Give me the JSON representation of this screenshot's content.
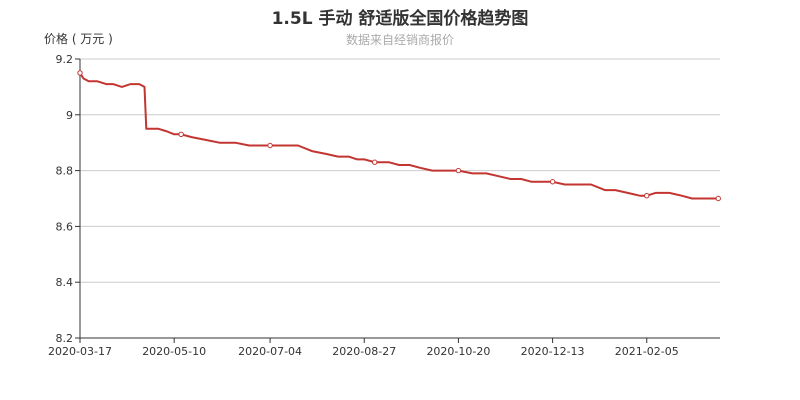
{
  "chart_data": {
    "type": "line",
    "title": "1.5L 手动 舒适版全国价格趋势图",
    "subtitle": "数据来自经销商报价",
    "ylabel": "价格 ( 万元 )",
    "xlabel": "",
    "ylim": [
      8.2,
      9.2
    ],
    "yticks": [
      "8.2",
      "8.4",
      "8.6",
      "8.8",
      "9",
      "9.2"
    ],
    "xlim": [
      "2020-03-17",
      "2021-03-19"
    ],
    "xticks": [
      "2020-03-17",
      "2020-05-10",
      "2020-07-04",
      "2020-08-27",
      "2020-10-20",
      "2020-12-13",
      "2021-02-05"
    ],
    "grid": true,
    "line_color": "#c23531",
    "series": [
      {
        "name": "",
        "x": [
          "2020-03-17",
          "2020-03-19",
          "2020-03-22",
          "2020-03-27",
          "2020-04-01",
          "2020-04-05",
          "2020-04-10",
          "2020-04-15",
          "2020-04-20",
          "2020-04-23",
          "2020-04-24",
          "2020-05-01",
          "2020-05-06",
          "2020-05-10",
          "2020-05-14",
          "2020-05-20",
          "2020-05-28",
          "2020-06-05",
          "2020-06-14",
          "2020-06-22",
          "2020-07-04",
          "2020-07-10",
          "2020-07-20",
          "2020-07-28",
          "2020-08-05",
          "2020-08-12",
          "2020-08-18",
          "2020-08-23",
          "2020-08-27",
          "2020-09-02",
          "2020-09-10",
          "2020-09-16",
          "2020-09-22",
          "2020-09-28",
          "2020-10-05",
          "2020-10-12",
          "2020-10-20",
          "2020-10-28",
          "2020-11-05",
          "2020-11-12",
          "2020-11-19",
          "2020-11-25",
          "2020-12-01",
          "2020-12-08",
          "2020-12-13",
          "2020-12-20",
          "2020-12-28",
          "2021-01-04",
          "2021-01-12",
          "2021-01-18",
          "2021-01-25",
          "2021-02-01",
          "2021-02-05",
          "2021-02-10",
          "2021-02-18",
          "2021-02-25",
          "2021-03-03",
          "2021-03-10",
          "2021-03-16",
          "2021-03-18"
        ],
        "values": [
          9.15,
          9.13,
          9.12,
          9.12,
          9.11,
          9.11,
          9.1,
          9.11,
          9.11,
          9.1,
          8.95,
          8.95,
          8.94,
          8.93,
          8.93,
          8.92,
          8.91,
          8.9,
          8.9,
          8.89,
          8.89,
          8.89,
          8.89,
          8.87,
          8.86,
          8.85,
          8.85,
          8.84,
          8.84,
          8.83,
          8.83,
          8.82,
          8.82,
          8.81,
          8.8,
          8.8,
          8.8,
          8.79,
          8.79,
          8.78,
          8.77,
          8.77,
          8.76,
          8.76,
          8.76,
          8.75,
          8.75,
          8.75,
          8.73,
          8.73,
          8.72,
          8.71,
          8.71,
          8.72,
          8.72,
          8.71,
          8.7,
          8.7,
          8.7,
          8.7
        ],
        "markers_at": [
          "2020-03-17",
          "2020-05-14",
          "2020-07-04",
          "2020-09-02",
          "2020-10-20",
          "2020-12-13",
          "2021-02-05",
          "2021-03-18"
        ]
      }
    ]
  }
}
